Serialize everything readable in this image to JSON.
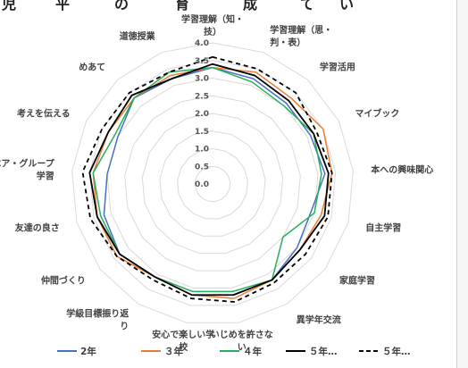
{
  "top_fragments": [
    "児",
    "平",
    "の",
    "育",
    "成",
    "て",
    "い"
  ],
  "chart_data": {
    "type": "radar",
    "title": "",
    "categories": [
      "学習理解（知・技）",
      "学習理解（思・判・表）",
      "学習活用",
      "マイブック",
      "本への興味関心",
      "自主学習",
      "家庭学習",
      "異学年交流",
      "いじめを許さない",
      "安心で楽しい学校",
      "学級目標振り返り",
      "仲間づくり",
      "友達の良さ",
      "ペア・グループ学習",
      "考えを伝える",
      "めあて",
      "道徳授業"
    ],
    "category_lines": [
      [
        "学習理解（知・",
        "技）"
      ],
      [
        "学習理解（思・",
        "判・表）"
      ],
      [
        "学習活用"
      ],
      [
        "マイブック"
      ],
      [
        "本への興味関心"
      ],
      [
        "自主学習"
      ],
      [
        "家庭学習"
      ],
      [
        "異学年交流"
      ],
      [
        "いじめを許さな",
        "い"
      ],
      [
        "安心で楽しい学",
        "校"
      ],
      [
        "学級目標振り返",
        "り"
      ],
      [
        "仲間づくり"
      ],
      [
        "友達の良さ"
      ],
      [
        "ペア・グループ",
        "学習"
      ],
      [
        "考えを伝える"
      ],
      [
        "めあて"
      ],
      [
        "道徳授業"
      ]
    ],
    "rmin": 0,
    "rmax": 4.0,
    "ticks": [
      "0.0",
      "0.5",
      "1.0",
      "1.5",
      "2.0",
      "2.5",
      "3.0",
      "3.5",
      "4.0"
    ],
    "tick_values": [
      0,
      0.5,
      1.0,
      1.5,
      2.0,
      2.5,
      3.0,
      3.5,
      4.0
    ],
    "grid": true,
    "legend_position": "bottom",
    "series": [
      {
        "name": "2年",
        "color": "#4472c4",
        "dash": "solid",
        "values": [
          3.3,
          3.2,
          3.1,
          3.1,
          3.2,
          2.9,
          3.0,
          3.2,
          3.2,
          3.2,
          3.1,
          3.3,
          3.2,
          3.0,
          3.0,
          3.3,
          3.2
        ]
      },
      {
        "name": "３年",
        "color": "#ed7d31",
        "dash": "solid",
        "values": [
          3.3,
          3.4,
          3.3,
          3.5,
          3.4,
          3.2,
          3.1,
          3.2,
          3.3,
          3.2,
          3.1,
          3.4,
          3.4,
          3.4,
          3.3,
          3.3,
          3.3
        ]
      },
      {
        "name": "４年",
        "color": "#27ae60",
        "dash": "solid",
        "values": [
          3.3,
          3.1,
          3.0,
          3.2,
          3.1,
          3.0,
          2.5,
          3.2,
          3.1,
          3.1,
          3.1,
          3.3,
          3.3,
          3.4,
          3.1,
          3.3,
          3.4
        ]
      },
      {
        "name": "５年…",
        "color": "#000000",
        "dash": "solid",
        "values": [
          3.4,
          3.3,
          3.2,
          3.2,
          3.3,
          3.3,
          3.1,
          3.2,
          3.2,
          3.2,
          3.1,
          3.3,
          3.4,
          3.5,
          3.3,
          3.4,
          3.2
        ]
      },
      {
        "name": "５年…",
        "color": "#000000",
        "dash": "dashed",
        "values": [
          3.6,
          3.5,
          3.5,
          3.3,
          3.4,
          3.4,
          3.3,
          3.3,
          3.4,
          3.3,
          3.2,
          3.4,
          3.6,
          3.7,
          3.5,
          3.5,
          3.4
        ]
      }
    ]
  }
}
